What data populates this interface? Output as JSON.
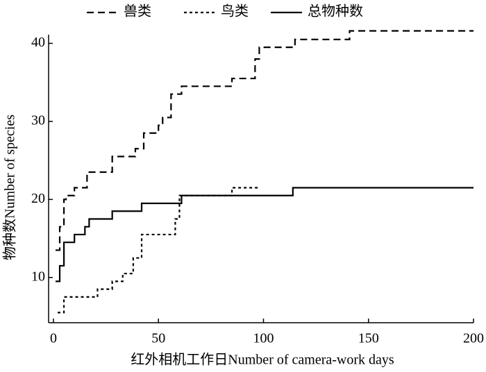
{
  "chart_data": {
    "type": "line",
    "x_label": "红外相机工作日Number of camera-work days",
    "y_label": "物种数Number of species",
    "xlim": [
      -2.3,
      200
    ],
    "xticks": [
      0,
      50,
      100,
      150,
      200
    ],
    "ylim": [
      4.2,
      42
    ],
    "yticks": [
      10,
      20,
      30,
      40
    ],
    "legend": "top",
    "series": [
      {
        "name": "兽类",
        "color": "#000000",
        "dash": "long",
        "x": [
          1,
          3,
          3,
          5,
          5,
          6,
          6,
          10,
          10,
          16,
          16,
          28,
          28,
          39,
          39,
          43,
          43,
          50,
          50,
          52,
          52,
          56,
          56,
          61,
          61,
          85,
          85,
          96,
          96,
          98,
          98,
          115,
          115,
          141,
          141,
          200
        ],
        "values": [
          13.5,
          13.5,
          16.5,
          16.5,
          20,
          20,
          20.5,
          20.5,
          21.5,
          21.5,
          23.5,
          23.5,
          25.5,
          25.5,
          26.5,
          26.5,
          28.5,
          28.5,
          29.5,
          29.5,
          30.5,
          30.5,
          33.5,
          33.5,
          34.5,
          34.5,
          35.5,
          35.5,
          38,
          38,
          39.5,
          39.5,
          40.5,
          40.5,
          41.6,
          41.6
        ]
      },
      {
        "name": "鸟类",
        "color": "#000000",
        "dash": "short",
        "x": [
          2,
          5,
          5,
          21,
          21,
          28,
          28,
          33,
          33,
          38,
          38,
          42,
          42,
          58,
          58,
          60,
          60,
          62,
          85,
          85,
          98
        ],
        "values": [
          5.5,
          5.5,
          7.5,
          7.5,
          8.5,
          8.5,
          9.5,
          9.5,
          10.5,
          10.5,
          12.5,
          12.5,
          15.5,
          15.5,
          17.5,
          17.5,
          20.5,
          20.5,
          20.5,
          21.5,
          21.5
        ]
      },
      {
        "name": "总物种数",
        "color": "#000000",
        "dash": "solid",
        "x": [
          1,
          3,
          3,
          5,
          5,
          10,
          10,
          15,
          15,
          17,
          17,
          28,
          28,
          42,
          42,
          61,
          61,
          114,
          114,
          200
        ],
        "values": [
          9.5,
          9.5,
          11.5,
          11.5,
          14.5,
          14.5,
          15.5,
          15.5,
          16.5,
          16.5,
          17.5,
          17.5,
          18.5,
          18.5,
          19.5,
          19.5,
          20.5,
          20.5,
          21.5,
          21.5
        ]
      }
    ]
  }
}
